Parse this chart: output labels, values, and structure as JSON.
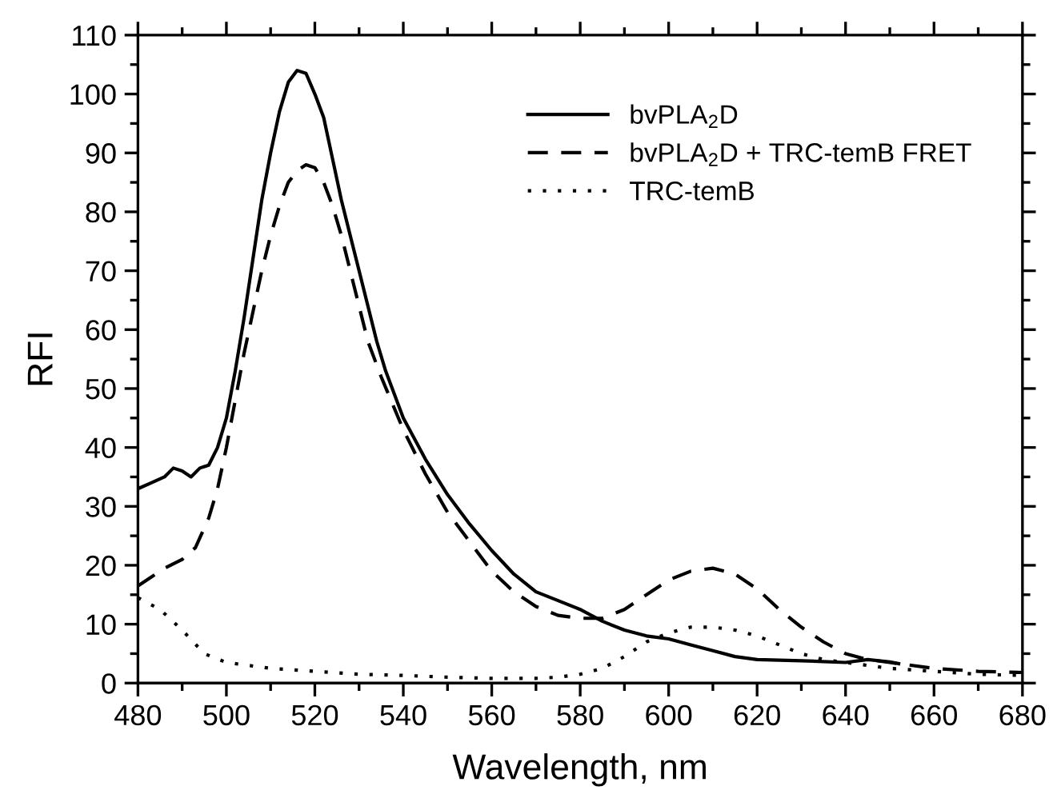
{
  "chart_data": {
    "type": "line",
    "xlabel": "Wavelength, nm",
    "ylabel": "RFI",
    "xlim": [
      480,
      680
    ],
    "xticks": [
      480,
      500,
      520,
      540,
      560,
      580,
      600,
      620,
      640,
      660,
      680
    ],
    "ylim": [
      0,
      110
    ],
    "yticks": [
      0,
      10,
      20,
      30,
      40,
      50,
      60,
      70,
      80,
      90,
      100,
      110
    ],
    "grid": false,
    "legend": "top right",
    "marker": "none",
    "series": [
      {
        "name": "bvPLA$_{2}$D",
        "color": "#000000",
        "line_style": "solid",
        "x": [
          480,
          483,
          486,
          488,
          490,
          492,
          494,
          496,
          498,
          500,
          502,
          504,
          506,
          508,
          510,
          512,
          514,
          516,
          518,
          520,
          522,
          524,
          526,
          528,
          530,
          532,
          534,
          536,
          540,
          545,
          550,
          555,
          560,
          565,
          570,
          575,
          580,
          585,
          590,
          595,
          600,
          605,
          610,
          615,
          620,
          630,
          640,
          645,
          650,
          652
        ],
        "values": [
          33,
          34,
          35,
          36.5,
          36,
          35,
          36.5,
          37,
          40,
          45,
          53,
          62,
          72,
          82,
          90,
          97,
          102,
          104,
          103.5,
          100,
          96,
          89,
          82,
          76,
          70,
          64,
          58,
          53,
          45,
          38,
          32,
          27,
          22.5,
          18.5,
          15.5,
          14,
          12.5,
          10.5,
          9,
          8,
          7.5,
          6.5,
          5.5,
          4.5,
          4,
          3.8,
          3.5,
          4,
          3.6,
          3.3
        ]
      },
      {
        "name": "bvPLA$_{2}$D + TRC-temB FRET",
        "color": "#000000",
        "line_style": "dashed",
        "x": [
          480,
          483,
          486,
          490,
          493,
          496,
          498,
          500,
          502,
          504,
          506,
          508,
          510,
          512,
          514,
          516,
          518,
          520,
          522,
          524,
          526,
          528,
          530,
          532,
          535,
          540,
          545,
          550,
          555,
          560,
          565,
          570,
          575,
          580,
          585,
          590,
          595,
          600,
          605,
          610,
          615,
          620,
          625,
          630,
          635,
          640,
          645,
          650,
          660,
          670,
          680
        ],
        "values": [
          16.5,
          18,
          19.5,
          21,
          23,
          28,
          33,
          40,
          48,
          56,
          63,
          70,
          76,
          81,
          85,
          87,
          88,
          87.5,
          85,
          81,
          76,
          70,
          64,
          58,
          52,
          43,
          35.5,
          29,
          24,
          19,
          15.5,
          13,
          11.5,
          11,
          11,
          12.5,
          15,
          17.5,
          19,
          19.5,
          18.5,
          16,
          12.5,
          9.5,
          7,
          5,
          4,
          3.5,
          2.5,
          2,
          1.8
        ]
      },
      {
        "name": "TRC-temB",
        "color": "#000000",
        "line_style": "dotted",
        "x": [
          480,
          485,
          490,
          495,
          500,
          510,
          520,
          530,
          540,
          550,
          560,
          570,
          575,
          580,
          585,
          590,
          595,
          600,
          605,
          610,
          615,
          620,
          625,
          630,
          635,
          640,
          650,
          660,
          670,
          680
        ],
        "values": [
          14.5,
          12.5,
          9,
          5,
          3.5,
          2.5,
          2,
          1.5,
          1.3,
          1,
          0.8,
          0.8,
          1,
          1.5,
          2.5,
          4.5,
          7,
          8.5,
          9.5,
          9.5,
          9,
          8,
          6.5,
          5,
          4,
          3.5,
          2.5,
          2,
          1.5,
          1.3
        ]
      }
    ]
  }
}
